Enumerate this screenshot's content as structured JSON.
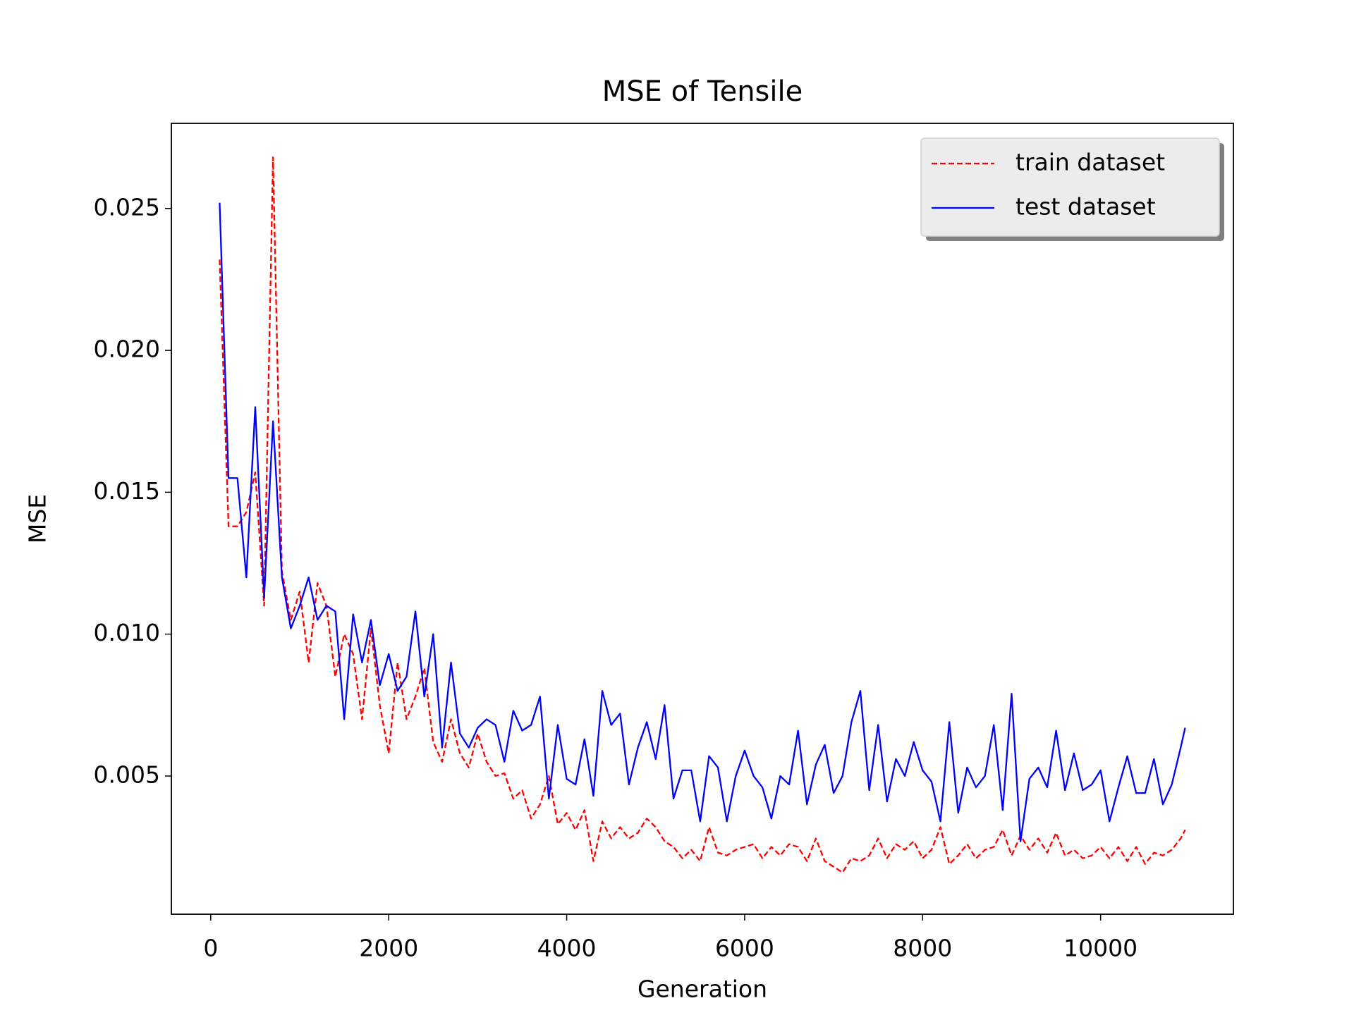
{
  "chart_data": {
    "type": "line",
    "title": "MSE of Tensile",
    "xlabel": "Generation",
    "ylabel": "MSE",
    "x": [
      100,
      200,
      300,
      400,
      500,
      600,
      700,
      800,
      900,
      1000,
      1100,
      1200,
      1300,
      1400,
      1500,
      1600,
      1700,
      1800,
      1900,
      2000,
      2100,
      2200,
      2300,
      2400,
      2500,
      2600,
      2700,
      2800,
      2900,
      3000,
      3100,
      3200,
      3300,
      3400,
      3500,
      3600,
      3700,
      3800,
      3900,
      4000,
      4100,
      4200,
      4300,
      4400,
      4500,
      4600,
      4700,
      4800,
      4900,
      5000,
      5100,
      5200,
      5300,
      5400,
      5500,
      5600,
      5700,
      5800,
      5900,
      6000,
      6100,
      6200,
      6300,
      6400,
      6500,
      6600,
      6700,
      6800,
      6900,
      7000,
      7100,
      7200,
      7300,
      7400,
      7500,
      7600,
      7700,
      7800,
      7900,
      8000,
      8100,
      8200,
      8300,
      8400,
      8500,
      8600,
      8700,
      8800,
      8900,
      9000,
      9100,
      9200,
      9300,
      9400,
      9500,
      9600,
      9700,
      9800,
      9900,
      10000,
      10100,
      10200,
      10300,
      10400,
      10500,
      10600,
      10700,
      10800,
      10900,
      10950
    ],
    "series": [
      {
        "name": "train dataset",
        "color": "#ff0000",
        "dash": true,
        "values": [
          0.0232,
          0.0138,
          0.0138,
          0.0143,
          0.0157,
          0.011,
          0.0268,
          0.0122,
          0.0105,
          0.0115,
          0.009,
          0.0118,
          0.011,
          0.0085,
          0.01,
          0.0093,
          0.007,
          0.0102,
          0.0075,
          0.0058,
          0.009,
          0.007,
          0.0078,
          0.0088,
          0.0062,
          0.0055,
          0.007,
          0.0058,
          0.0053,
          0.0065,
          0.0055,
          0.005,
          0.0051,
          0.0042,
          0.0045,
          0.0035,
          0.004,
          0.005,
          0.0033,
          0.0037,
          0.0031,
          0.0038,
          0.002,
          0.0034,
          0.0028,
          0.0032,
          0.0028,
          0.003,
          0.0035,
          0.0032,
          0.0027,
          0.0025,
          0.0021,
          0.0024,
          0.002,
          0.0032,
          0.0023,
          0.0022,
          0.0024,
          0.0025,
          0.0026,
          0.0021,
          0.0025,
          0.0022,
          0.0026,
          0.0025,
          0.002,
          0.0028,
          0.002,
          0.0018,
          0.0016,
          0.0021,
          0.002,
          0.0022,
          0.0028,
          0.0021,
          0.0026,
          0.0024,
          0.0027,
          0.0021,
          0.0024,
          0.0032,
          0.0019,
          0.0022,
          0.0026,
          0.0021,
          0.0024,
          0.0025,
          0.0031,
          0.0022,
          0.0029,
          0.0024,
          0.0028,
          0.0023,
          0.003,
          0.0022,
          0.0024,
          0.0021,
          0.0022,
          0.0025,
          0.0021,
          0.0025,
          0.002,
          0.0025,
          0.0019,
          0.0023,
          0.0022,
          0.0024,
          0.0028,
          0.0031
        ]
      },
      {
        "name": "test dataset",
        "color": "#0000ff",
        "dash": false,
        "values": [
          0.0252,
          0.0155,
          0.0155,
          0.012,
          0.018,
          0.0113,
          0.0175,
          0.012,
          0.0102,
          0.011,
          0.012,
          0.0105,
          0.011,
          0.0108,
          0.007,
          0.0107,
          0.009,
          0.0105,
          0.0082,
          0.0093,
          0.008,
          0.0085,
          0.0108,
          0.0078,
          0.01,
          0.006,
          0.009,
          0.0065,
          0.006,
          0.0067,
          0.007,
          0.0068,
          0.0055,
          0.0073,
          0.0066,
          0.0068,
          0.0078,
          0.0042,
          0.0068,
          0.0049,
          0.0047,
          0.0063,
          0.0043,
          0.008,
          0.0068,
          0.0072,
          0.0047,
          0.006,
          0.0069,
          0.0056,
          0.0075,
          0.0042,
          0.0052,
          0.0052,
          0.0034,
          0.0057,
          0.0053,
          0.0034,
          0.005,
          0.0059,
          0.005,
          0.0046,
          0.0035,
          0.005,
          0.0047,
          0.0066,
          0.004,
          0.0054,
          0.0061,
          0.0044,
          0.005,
          0.0069,
          0.008,
          0.0045,
          0.0068,
          0.0041,
          0.0056,
          0.005,
          0.0062,
          0.0052,
          0.0048,
          0.0034,
          0.0069,
          0.0037,
          0.0053,
          0.0046,
          0.005,
          0.0068,
          0.0038,
          0.0079,
          0.0027,
          0.0049,
          0.0053,
          0.0046,
          0.0066,
          0.0045,
          0.0058,
          0.0045,
          0.0047,
          0.0052,
          0.0034,
          0.0046,
          0.0057,
          0.0044,
          0.0044,
          0.0056,
          0.004,
          0.0047,
          0.006,
          0.0067
        ]
      }
    ],
    "xlim": [
      -442.5,
      11492.5
    ],
    "ylim": [
      0.00013,
      0.028
    ],
    "xticks": [
      0,
      2000,
      4000,
      6000,
      8000,
      10000
    ],
    "yticks": [
      0.005,
      {
        "value": 0.01,
        "label": "0.010"
      },
      0.015,
      {
        "value": 0.02,
        "label": "0.020"
      },
      0.025
    ],
    "legend": "upper right",
    "grid": false
  }
}
